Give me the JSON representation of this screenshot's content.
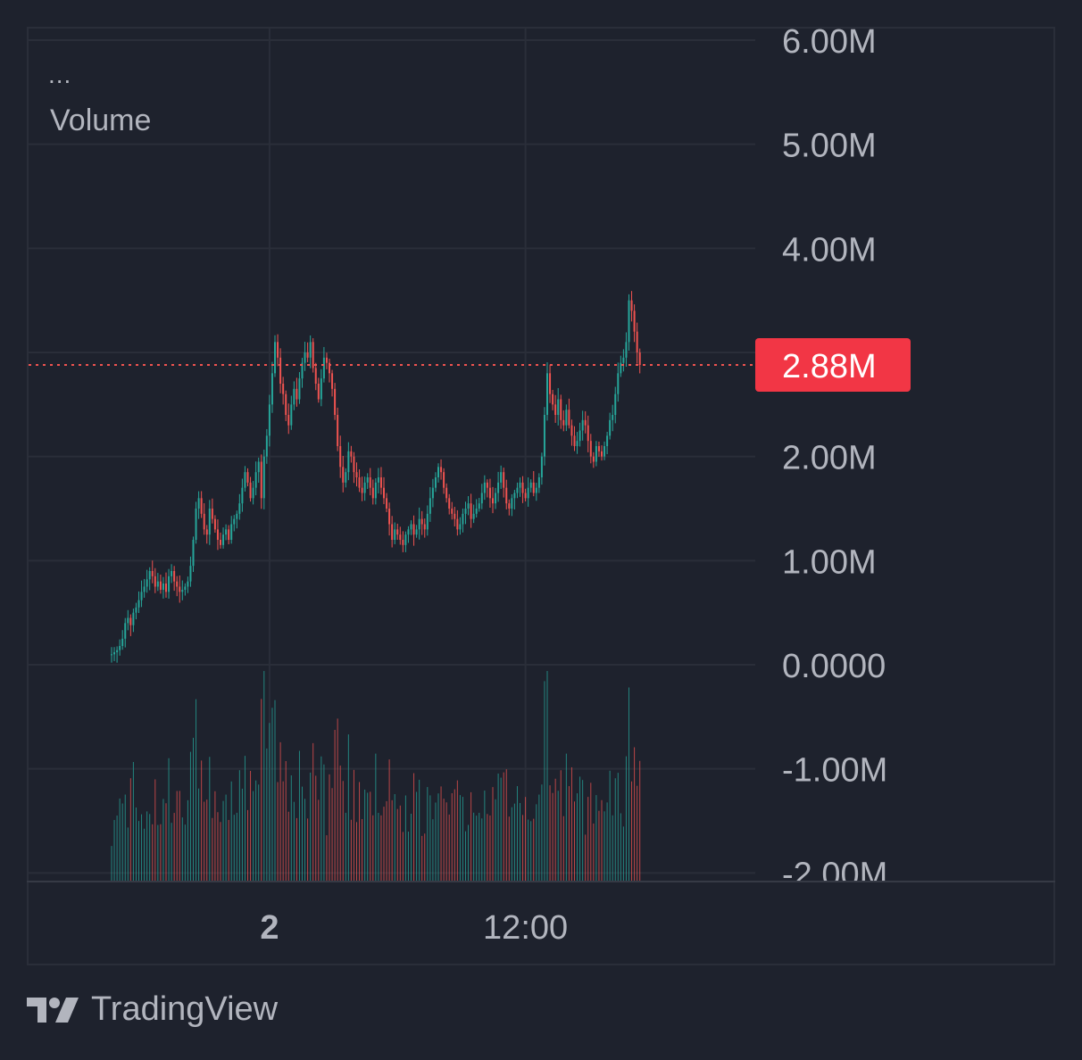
{
  "legend": {
    "dots": "...",
    "label": "Volume"
  },
  "brand": {
    "name": "TradingView"
  },
  "colors": {
    "background": "#1e222d",
    "grid": "#2a2e39",
    "up": "#26a69a",
    "down": "#ef5350",
    "label_bg": "#f23645",
    "axis_text": "#b2b5be"
  },
  "chart_data": {
    "type": "candlestick",
    "title": "",
    "y_axis": {
      "range": [
        -2000000,
        6000000
      ],
      "ticks": [
        {
          "value": 6000000,
          "label": "6.00M"
        },
        {
          "value": 5000000,
          "label": "5.00M"
        },
        {
          "value": 4000000,
          "label": "4.00M"
        },
        {
          "value": 2000000,
          "label": "2.00M"
        },
        {
          "value": 1000000,
          "label": "1.00M"
        },
        {
          "value": 0,
          "label": "0.0000"
        },
        {
          "value": -1000000,
          "label": "-1.00M"
        },
        {
          "value": -2000000,
          "label": "-2.00M"
        }
      ]
    },
    "x_axis": {
      "ticks": [
        {
          "label": "2",
          "bold": true,
          "bar_index": 58
        },
        {
          "label": "12:00",
          "bold": false,
          "bar_index": 152
        }
      ]
    },
    "last_price": {
      "value": 2880000,
      "label": "2.88M"
    },
    "candles_approx_closes_M": [
      0.1,
      0.12,
      0.14,
      0.18,
      0.25,
      0.4,
      0.45,
      0.38,
      0.5,
      0.55,
      0.62,
      0.7,
      0.75,
      0.82,
      0.9,
      0.85,
      0.75,
      0.8,
      0.72,
      0.78,
      0.7,
      0.85,
      0.9,
      0.8,
      0.75,
      0.7,
      0.72,
      0.75,
      0.8,
      0.95,
      1.2,
      1.5,
      1.6,
      1.45,
      1.3,
      1.25,
      1.5,
      1.4,
      1.3,
      1.2,
      1.15,
      1.25,
      1.3,
      1.2,
      1.35,
      1.4,
      1.45,
      1.55,
      1.7,
      1.85,
      1.75,
      1.6,
      1.7,
      1.85,
      1.95,
      1.6,
      2.0,
      2.2,
      2.5,
      2.8,
      3.1,
      2.95,
      2.7,
      2.6,
      2.4,
      2.3,
      2.5,
      2.65,
      2.55,
      2.75,
      2.9,
      3.0,
      2.95,
      3.1,
      2.85,
      2.7,
      2.55,
      2.75,
      2.95,
      2.9,
      2.8,
      2.65,
      2.4,
      2.1,
      1.9,
      1.75,
      1.85,
      2.05,
      2.0,
      1.85,
      1.8,
      1.7,
      1.65,
      1.75,
      1.8,
      1.7,
      1.6,
      1.75,
      1.8,
      1.7,
      1.6,
      1.5,
      1.35,
      1.2,
      1.3,
      1.25,
      1.2,
      1.15,
      1.25,
      1.3,
      1.35,
      1.25,
      1.3,
      1.4,
      1.35,
      1.3,
      1.45,
      1.6,
      1.7,
      1.8,
      1.9,
      1.85,
      1.7,
      1.6,
      1.5,
      1.45,
      1.4,
      1.3,
      1.35,
      1.45,
      1.5,
      1.55,
      1.4,
      1.45,
      1.5,
      1.55,
      1.65,
      1.75,
      1.7,
      1.6,
      1.55,
      1.65,
      1.75,
      1.85,
      1.7,
      1.55,
      1.5,
      1.6,
      1.65,
      1.7,
      1.75,
      1.65,
      1.6,
      1.7,
      1.75,
      1.65,
      1.7,
      1.8,
      2.0,
      2.4,
      2.8,
      2.6,
      2.5,
      2.4,
      2.55,
      2.35,
      2.3,
      2.45,
      2.3,
      2.2,
      2.1,
      2.15,
      2.25,
      2.35,
      2.3,
      2.15,
      2.0,
      1.95,
      2.1,
      2.05,
      2.0,
      2.1,
      2.2,
      2.35,
      2.4,
      2.6,
      2.8,
      2.9,
      2.95,
      3.1,
      3.5,
      3.4,
      3.2,
      3.0,
      2.88
    ],
    "volume_note": "volume bars plotted in lower section, relative heights only"
  }
}
